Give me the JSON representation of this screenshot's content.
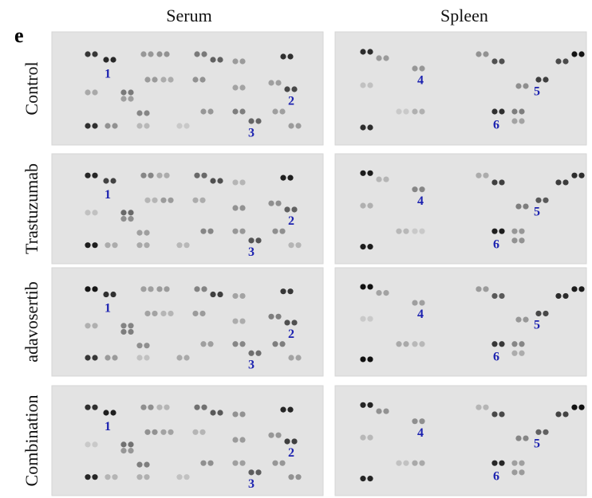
{
  "panel_label": "e",
  "columns": [
    "Serum",
    "Spleen"
  ],
  "rows": [
    {
      "label": "Control",
      "serum_spots": [
        "1",
        "2",
        "3"
      ],
      "spleen_spots": [
        "4",
        "5",
        "6"
      ]
    },
    {
      "label": "Trastuzumab",
      "serum_spots": [
        "1",
        "2",
        "3"
      ],
      "spleen_spots": [
        "4",
        "5",
        "6"
      ]
    },
    {
      "label": "adavosertib",
      "serum_spots": [
        "1",
        "2",
        "3"
      ],
      "spleen_spots": [
        "4",
        "5",
        "6"
      ]
    },
    {
      "label": "Combination",
      "serum_spots": [
        "1",
        "2",
        "3"
      ],
      "spleen_spots": [
        "4",
        "5",
        "6"
      ]
    }
  ]
}
